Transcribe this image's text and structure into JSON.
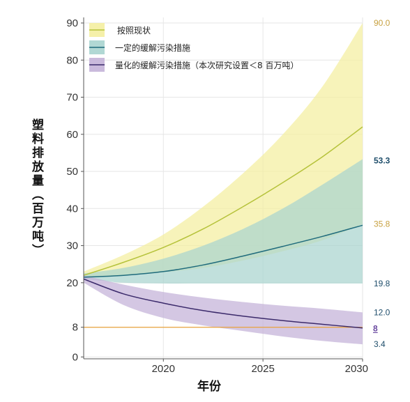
{
  "chart_data": {
    "type": "area",
    "xlabel": "年份",
    "ylabel": "塑料排放量（百万吨）",
    "xlim": [
      2016,
      2030
    ],
    "ylim": [
      -0.5,
      91.5
    ],
    "x_ticks": [
      2020,
      2025,
      2030
    ],
    "y_ticks": [
      0,
      8,
      20,
      30,
      40,
      50,
      60,
      70,
      80,
      90
    ],
    "grid": true,
    "legend_position": "top-left",
    "threshold": {
      "value": 8,
      "label": "8",
      "color": "#e8a33d",
      "label_color": "#6a4aa0"
    },
    "x": [
      2016,
      2018,
      2020,
      2022,
      2024,
      2026,
      2028,
      2030
    ],
    "series": [
      {
        "name": "按照现状",
        "line_color": "#b5c23a",
        "fill_color": "#f4eea0",
        "values": [
          22,
          25.5,
          29.5,
          34.5,
          40.5,
          47,
          54,
          62
        ],
        "upper": [
          23,
          27.5,
          33,
          40.5,
          49.5,
          60,
          73,
          90
        ],
        "lower": [
          21.5,
          22,
          22.8,
          24,
          26,
          28.5,
          31.5,
          35.8
        ],
        "end_labels": [
          {
            "value": 90,
            "text": "90.0",
            "color": "#c7a03f"
          },
          {
            "value": 35.8,
            "text": "35.8",
            "color": "#c7a03f"
          }
        ]
      },
      {
        "name": "一定的缓解污染措施",
        "line_color": "#1f6b7c",
        "fill_color": "#a9d4cf",
        "values": [
          21.5,
          22,
          23,
          24.8,
          27.2,
          29.8,
          32.5,
          35.5
        ],
        "upper": [
          22.5,
          24,
          26.5,
          30,
          34.5,
          40,
          46.5,
          53.3
        ],
        "lower": [
          21,
          20,
          19.8,
          19.8,
          19.8,
          19.8,
          19.8,
          19.8
        ],
        "end_labels": [
          {
            "value": 53.3,
            "text": "53.3",
            "color": "#1f4e6b"
          },
          {
            "value": 19.8,
            "text": "19.8",
            "color": "#1f4e6b"
          }
        ]
      },
      {
        "name": "量化的缓解污染措施（本次研究设置＜8 百万吨）",
        "line_color": "#3b2a6b",
        "fill_color": "#c4b2d8",
        "values": [
          21,
          17,
          14.5,
          12.5,
          11,
          9.8,
          8.8,
          7.8
        ],
        "upper": [
          22,
          19.5,
          17.5,
          16,
          14.8,
          13.8,
          13,
          12
        ],
        "lower": [
          20,
          14,
          10.5,
          8.5,
          7,
          5.5,
          4.3,
          3.4
        ],
        "end_labels": [
          {
            "value": 12,
            "text": "12.0",
            "color": "#1f4e6b"
          },
          {
            "value": 3.4,
            "text": "3.4",
            "color": "#1f4e6b"
          }
        ]
      }
    ]
  }
}
